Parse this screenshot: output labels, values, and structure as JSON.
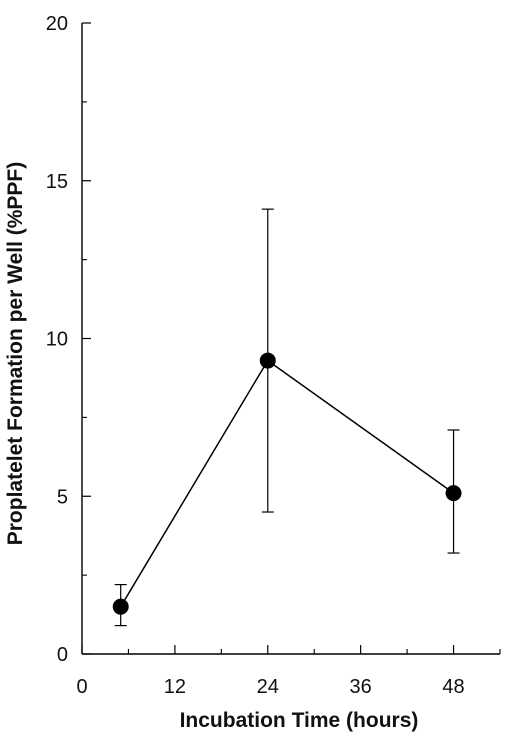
{
  "chart_data": {
    "type": "line",
    "title": "",
    "xlabel": "Incubation Time (hours)",
    "ylabel": "Proplatelet Formation per Well  (%PPF)",
    "xlim": [
      0,
      54
    ],
    "ylim": [
      0,
      20
    ],
    "x_ticks": [
      0,
      12,
      24,
      36,
      48
    ],
    "y_ticks": [
      0,
      5,
      10,
      15,
      20
    ],
    "x_minor_ticks": [
      6,
      18,
      30,
      42,
      54
    ],
    "y_minor_ticks": [
      2.5,
      7.5,
      12.5,
      17.5
    ],
    "grid": false,
    "series": [
      {
        "x": [
          5,
          24,
          48
        ],
        "y": [
          1.5,
          9.3,
          5.1
        ],
        "y_err_low": [
          0.9,
          4.5,
          3.2
        ],
        "y_err_high": [
          2.2,
          14.1,
          7.1
        ],
        "color": "#000000"
      }
    ]
  }
}
